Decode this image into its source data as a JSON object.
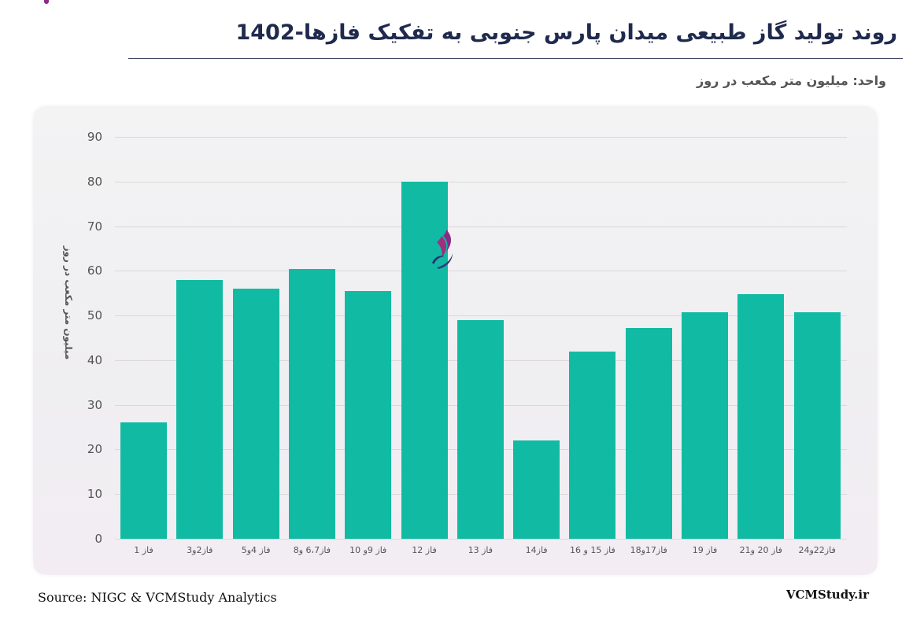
{
  "header": {
    "title": "روند تولید گاز طبیعی میدان پارس جنوبی به تفکیک فازها-1402",
    "unit_label": "واحد: میلیون متر مکعب در روز"
  },
  "footer": {
    "source": "Source: NIGC & VCMStudy Analytics",
    "site": "VCMStudy.ir"
  },
  "colors": {
    "bar": "#11bba3",
    "title": "#1f2a4d"
  },
  "chart_data": {
    "type": "bar",
    "title": "روند تولید گاز طبیعی میدان پارس جنوبی به تفکیک فازها-1402",
    "subtitle": "واحد: میلیون متر مکعب در روز",
    "xlabel": "",
    "ylabel": "میلیون متر مکعب در روز",
    "ylim": [
      0,
      90
    ],
    "yticks": [
      "0",
      "10",
      "20",
      "30",
      "40",
      "50",
      "60",
      "70",
      "80",
      "90"
    ],
    "grid": true,
    "legend": "none",
    "categories": [
      "فاز 1",
      "فاز2و3",
      "فاز 4و5",
      "فاز6،7 و8",
      "فاز 9و 10",
      "فاز 12",
      "فاز 13",
      "فاز14",
      "فاز 15 و 16",
      "فاز17و18",
      "فاز 19",
      "فاز 20 و21",
      "فاز22و24"
    ],
    "values": [
      26,
      58,
      56,
      60.5,
      55.5,
      80,
      49,
      22,
      42,
      47.2,
      50.8,
      54.8,
      50.8
    ]
  }
}
